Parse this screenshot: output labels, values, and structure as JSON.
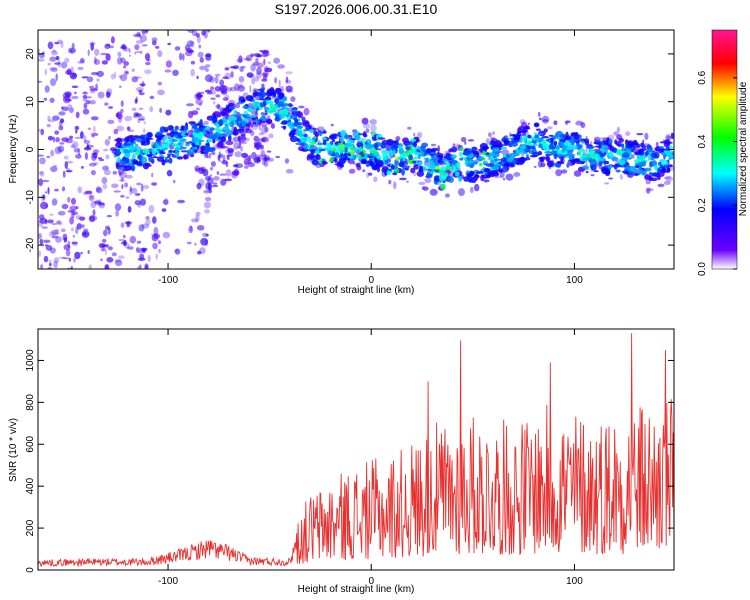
{
  "title": "S197.2026.006.00.31.E10",
  "chart_data": [
    {
      "type": "heatmap",
      "name": "spectrogram",
      "xlabel": "Height of straight line (km)",
      "ylabel": "Frequency (Hz)",
      "xlim": [
        -164,
        149
      ],
      "ylim": [
        -25,
        25
      ],
      "xticks": [
        -100,
        0,
        100
      ],
      "yticks": [
        -20,
        -10,
        0,
        10,
        20
      ],
      "track": {
        "x": [
          -164,
          -140,
          -120,
          -100,
          -80,
          -65,
          -55,
          -45,
          -35,
          -30,
          -20,
          -10,
          0,
          10,
          20,
          30,
          35,
          40,
          50,
          60,
          70,
          80,
          90,
          100,
          110,
          120,
          130,
          140,
          149
        ],
        "y": [
          -2,
          -3,
          -1,
          1,
          3,
          7,
          9,
          9,
          4,
          1,
          0,
          0,
          0,
          -2,
          -1,
          -3,
          -5,
          -3,
          -3,
          -2,
          0,
          2,
          0,
          0,
          -2,
          -1,
          -2,
          -3,
          0
        ]
      },
      "colorbar": {
        "label": "Normalized spectral amplitude",
        "range": [
          0.0,
          0.75
        ],
        "ticks": [
          "0.0",
          "0.2",
          "0.4",
          "0.6"
        ]
      }
    },
    {
      "type": "line",
      "name": "snr",
      "color": "#e8312f",
      "xlabel": "Height of straight line (km)",
      "ylabel": "SNR (10 * v/v)",
      "xlim": [
        -164,
        149
      ],
      "ylim": [
        0,
        1150
      ],
      "xticks": [
        -100,
        0,
        100
      ],
      "yticks": [
        0,
        200,
        400,
        600,
        800,
        1000
      ],
      "envelope": {
        "x": [
          -164,
          -140,
          -110,
          -95,
          -80,
          -70,
          -60,
          -40,
          -36,
          -30,
          -20,
          -10,
          0,
          10,
          20,
          30,
          40,
          50,
          60,
          70,
          80,
          90,
          100,
          110,
          120,
          130,
          140,
          149
        ],
        "y": [
          35,
          40,
          40,
          70,
          110,
          85,
          45,
          40,
          170,
          240,
          280,
          320,
          340,
          360,
          400,
          450,
          470,
          480,
          470,
          460,
          490,
          520,
          500,
          480,
          500,
          520,
          520,
          540
        ]
      },
      "peaks": [
        {
          "x": 44,
          "y": 1095
        },
        {
          "x": 128,
          "y": 1130
        },
        {
          "x": 145,
          "y": 1050
        },
        {
          "x": 28,
          "y": 900
        },
        {
          "x": 88,
          "y": 990
        }
      ]
    }
  ]
}
